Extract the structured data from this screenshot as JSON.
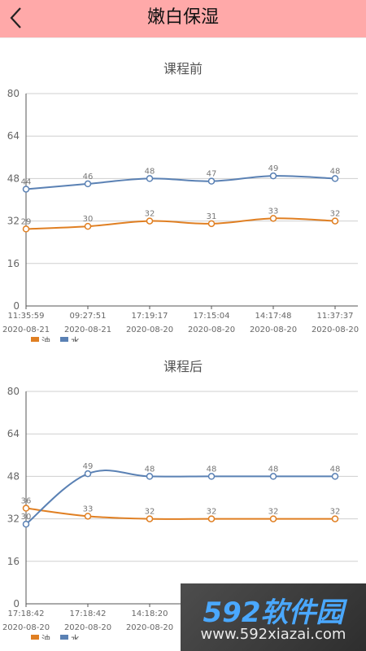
{
  "header": {
    "title": "嫩白保湿"
  },
  "colors": {
    "header_bg": "#ffa9a9",
    "oil": "#e07f22",
    "water": "#5a81b4",
    "grid": "#cfcfcf"
  },
  "icons": {
    "back": "chevron-left-icon"
  },
  "legend": {
    "oil": "油",
    "water": "水"
  },
  "chart_data": [
    {
      "type": "line",
      "title": "课程前",
      "ylim": [
        0,
        80
      ],
      "yticks": [
        0,
        16,
        32,
        48,
        64,
        80
      ],
      "times": [
        "11:35:59",
        "09:27:51",
        "17:19:17",
        "17:15:04",
        "14:17:48",
        "11:37:37"
      ],
      "dates": [
        "2020-08-21",
        "2020-08-21",
        "2020-08-20",
        "2020-08-20",
        "2020-08-20",
        "2020-08-20"
      ],
      "series": [
        {
          "name": "油",
          "values": [
            29,
            30,
            32,
            31,
            33,
            32
          ]
        },
        {
          "name": "水",
          "values": [
            44,
            46,
            48,
            47,
            49,
            48
          ]
        }
      ],
      "legend_position": "bottom-left",
      "grid": true
    },
    {
      "type": "line",
      "title": "课程后",
      "ylim": [
        0,
        80
      ],
      "yticks": [
        0,
        16,
        32,
        48,
        64,
        80
      ],
      "times": [
        "17:18:42",
        "17:18:42",
        "14:18:20",
        "14:18:20",
        "14:18:20",
        "14:18:20"
      ],
      "dates": [
        "2020-08-20",
        "2020-08-20",
        "2020-08-20",
        "2020-08-20",
        "2020-08-20",
        "2020-08-20"
      ],
      "series": [
        {
          "name": "油",
          "values": [
            36,
            33,
            32,
            32,
            32,
            32
          ]
        },
        {
          "name": "水",
          "values": [
            30,
            49,
            48,
            48,
            48,
            48
          ]
        }
      ],
      "legend_position": "bottom-left",
      "grid": true
    }
  ],
  "watermark": {
    "brand": "592软件园",
    "url": "www.592xiazai.com"
  }
}
